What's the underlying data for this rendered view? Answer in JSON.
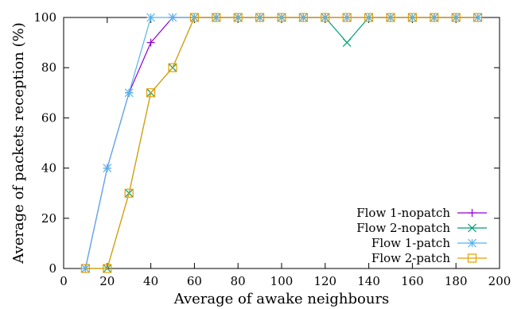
{
  "chart_data": {
    "type": "line",
    "xlabel": "Average of awake neighbours",
    "ylabel": "Average of packets reception (%)",
    "xlim": [
      0,
      200
    ],
    "ylim": [
      0,
      100
    ],
    "xticks": [
      0,
      20,
      40,
      60,
      80,
      100,
      120,
      140,
      160,
      180,
      200
    ],
    "yticks": [
      0,
      20,
      40,
      60,
      80,
      100
    ],
    "grid": false,
    "legend_position": "bottom-right",
    "series": [
      {
        "name": "Flow 1-nopatch",
        "color": "#9400d3",
        "marker": "plus",
        "x": [
          10,
          20,
          30,
          40,
          50,
          60,
          70,
          80,
          90,
          100,
          110,
          120,
          130,
          140,
          150,
          160,
          170,
          180,
          190
        ],
        "y": [
          0,
          40,
          70,
          90,
          100,
          100,
          100,
          100,
          100,
          100,
          100,
          100,
          100,
          100,
          100,
          100,
          100,
          100,
          100
        ]
      },
      {
        "name": "Flow 2-nopatch",
        "color": "#009e73",
        "marker": "cross",
        "x": [
          10,
          20,
          30,
          40,
          50,
          60,
          70,
          80,
          90,
          100,
          110,
          120,
          130,
          140,
          150,
          160,
          170,
          180,
          190
        ],
        "y": [
          0,
          0,
          30,
          70,
          80,
          100,
          100,
          100,
          100,
          100,
          100,
          100,
          90,
          100,
          100,
          100,
          100,
          100,
          100
        ]
      },
      {
        "name": "Flow 1-patch",
        "color": "#56b4e9",
        "marker": "star",
        "x": [
          10,
          20,
          30,
          40,
          50,
          60,
          70,
          80,
          90,
          100,
          110,
          120,
          130,
          140,
          150,
          160,
          170,
          180,
          190
        ],
        "y": [
          0,
          40,
          70,
          100,
          100,
          100,
          100,
          100,
          100,
          100,
          100,
          100,
          100,
          100,
          100,
          100,
          100,
          100,
          100
        ]
      },
      {
        "name": "Flow 2-patch",
        "color": "#e69f00",
        "marker": "square",
        "x": [
          10,
          20,
          30,
          40,
          50,
          60,
          70,
          80,
          90,
          100,
          110,
          120,
          130,
          140,
          150,
          160,
          170,
          180,
          190
        ],
        "y": [
          0,
          0,
          30,
          70,
          80,
          100,
          100,
          100,
          100,
          100,
          100,
          100,
          100,
          100,
          100,
          100,
          100,
          100,
          100
        ]
      }
    ]
  }
}
